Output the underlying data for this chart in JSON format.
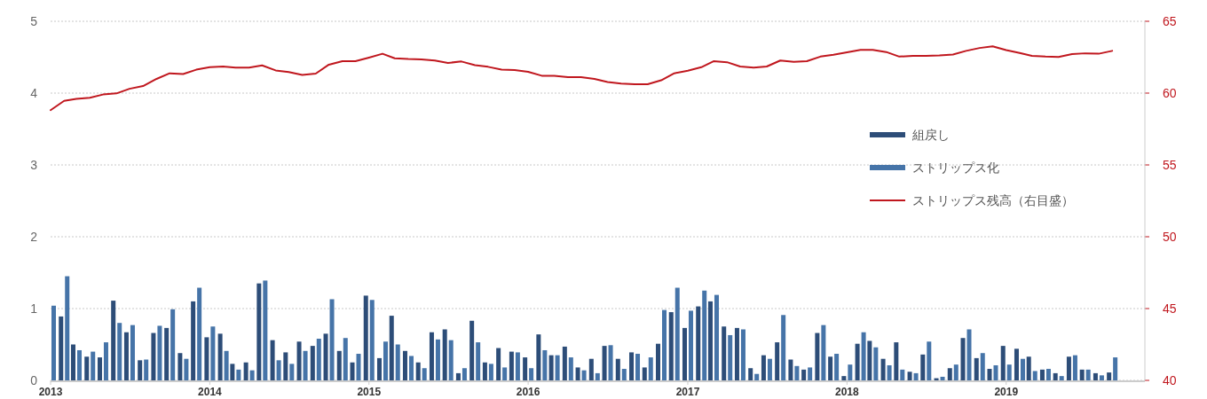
{
  "chart_data": {
    "type": "bar",
    "x": [
      "2013-01",
      "2013-02",
      "2013-03",
      "2013-04",
      "2013-05",
      "2013-06",
      "2013-07",
      "2013-08",
      "2013-09",
      "2013-10",
      "2013-11",
      "2013-12",
      "2014-01",
      "2014-02",
      "2014-03",
      "2014-04",
      "2014-05",
      "2014-06",
      "2014-07",
      "2014-08",
      "2014-09",
      "2014-10",
      "2014-11",
      "2014-12",
      "2015-01",
      "2015-02",
      "2015-03",
      "2015-04",
      "2015-05",
      "2015-06",
      "2015-07",
      "2015-08",
      "2015-09",
      "2015-10",
      "2015-11",
      "2015-12",
      "2016-01",
      "2016-02",
      "2016-03",
      "2016-04",
      "2016-05",
      "2016-06",
      "2016-07",
      "2016-08",
      "2016-09",
      "2016-10",
      "2016-11",
      "2016-12",
      "2017-01",
      "2017-02",
      "2017-03",
      "2017-04",
      "2017-05",
      "2017-06",
      "2017-07",
      "2017-08",
      "2017-09",
      "2017-10",
      "2017-11",
      "2017-12",
      "2018-01",
      "2018-02",
      "2018-03",
      "2018-04",
      "2018-05",
      "2018-06",
      "2018-07",
      "2018-08",
      "2018-09",
      "2018-10",
      "2018-11",
      "2018-12",
      "2019-01",
      "2019-02",
      "2019-03",
      "2019-04",
      "2019-05",
      "2019-06",
      "2019-07",
      "2019-08",
      "2019-09"
    ],
    "series": [
      {
        "name": "組戻し",
        "color": "#2d4d78",
        "values": [
          null,
          0.89,
          0.5,
          0.33,
          0.32,
          1.11,
          0.67,
          0.28,
          0.66,
          0.73,
          0.38,
          1.1,
          0.6,
          0.65,
          0.23,
          0.25,
          1.35,
          0.56,
          0.39,
          0.54,
          0.48,
          0.65,
          0.41,
          0.25,
          1.18,
          0.31,
          0.9,
          0.41,
          0.25,
          0.67,
          0.71,
          0.1,
          0.83,
          0.25,
          0.45,
          0.4,
          0.32,
          0.64,
          0.35,
          0.47,
          0.18,
          0.3,
          0.48,
          0.3,
          0.39,
          0.18,
          0.51,
          0.95,
          0.73,
          1.03,
          1.1,
          0.75,
          0.73,
          0.17,
          0.35,
          0.53,
          0.29,
          0.15,
          0.66,
          0.33,
          0.06,
          0.51,
          0.55,
          0.3,
          0.53,
          0.12,
          0.36,
          0.03,
          0.17,
          0.59,
          0.31,
          0.16,
          0.48,
          0.44,
          0.33,
          0.15,
          0.1,
          0.33,
          0.15,
          0.1,
          0.11
        ]
      },
      {
        "name": "ストリップス化",
        "color": "#4674a8",
        "values": [
          1.04,
          1.45,
          0.42,
          0.4,
          0.53,
          0.8,
          0.77,
          0.29,
          0.76,
          0.99,
          0.3,
          1.29,
          0.75,
          0.41,
          0.15,
          0.14,
          1.39,
          0.28,
          0.23,
          0.41,
          0.58,
          1.13,
          0.59,
          0.37,
          1.12,
          0.54,
          0.5,
          0.34,
          0.17,
          0.57,
          0.56,
          0.17,
          0.53,
          0.23,
          0.18,
          0.39,
          0.17,
          0.42,
          0.35,
          0.32,
          0.14,
          0.1,
          0.49,
          0.16,
          0.37,
          0.32,
          0.98,
          1.29,
          0.97,
          1.25,
          1.19,
          0.63,
          0.71,
          0.09,
          0.3,
          0.91,
          0.2,
          0.18,
          0.77,
          0.37,
          0.22,
          0.67,
          0.46,
          0.21,
          0.15,
          0.1,
          0.54,
          0.05,
          0.22,
          0.71,
          0.38,
          0.21,
          0.22,
          0.3,
          0.13,
          0.16,
          0.06,
          0.35,
          0.15,
          0.07,
          0.32
        ]
      },
      {
        "name": "ストリップス残高（右目盛）",
        "type": "line",
        "axis": "y2",
        "color": "#c0171e",
        "values": [
          58.81,
          59.46,
          59.6,
          59.68,
          59.9,
          59.98,
          60.3,
          60.49,
          60.99,
          61.38,
          61.33,
          61.63,
          61.8,
          61.85,
          61.78,
          61.78,
          61.93,
          61.58,
          61.46,
          61.26,
          61.36,
          61.98,
          62.22,
          62.22,
          62.47,
          62.74,
          62.42,
          62.37,
          62.35,
          62.27,
          62.1,
          62.2,
          61.95,
          61.83,
          61.63,
          61.6,
          61.48,
          61.21,
          61.21,
          61.11,
          61.11,
          60.99,
          60.77,
          60.67,
          60.62,
          60.62,
          60.89,
          61.38,
          61.56,
          61.8,
          62.22,
          62.15,
          61.85,
          61.78,
          61.85,
          62.27,
          62.17,
          62.22,
          62.54,
          62.67,
          62.84,
          63.01,
          63.01,
          62.86,
          62.54,
          62.59,
          62.59,
          62.62,
          62.69,
          62.94,
          63.14,
          63.26,
          62.99,
          62.79,
          62.59,
          62.54,
          62.52,
          62.72,
          62.77,
          62.74,
          62.94
        ]
      }
    ],
    "xlim": [
      "2013-01",
      "2019-11-15"
    ],
    "xticks": [
      "2013",
      "2014",
      "2015",
      "2016",
      "2017",
      "2018",
      "2019"
    ],
    "ylim": [
      0,
      5
    ],
    "yticks": [
      0,
      1,
      2,
      3,
      4,
      5
    ],
    "y2lim": [
      40,
      65
    ],
    "y2ticks": [
      40,
      45,
      50,
      55,
      60,
      65
    ],
    "grid": "y",
    "legend": "right"
  }
}
